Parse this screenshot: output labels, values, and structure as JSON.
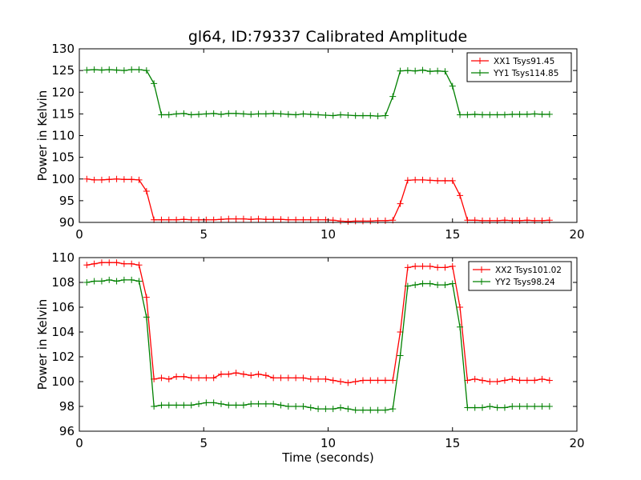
{
  "title": "gl64, ID:79337 Calibrated Amplitude",
  "chart_data": [
    {
      "type": "line",
      "ylabel": "Power in Kelvin",
      "xlabel": "",
      "xlim": [
        0,
        20
      ],
      "ylim": [
        90,
        130
      ],
      "xticks": [
        0,
        5,
        10,
        15,
        20
      ],
      "yticks": [
        90,
        95,
        100,
        105,
        110,
        115,
        120,
        125,
        130
      ],
      "legend_position": "top-right",
      "grid": false,
      "x": [
        0.3,
        0.6,
        0.9,
        1.2,
        1.5,
        1.8,
        2.1,
        2.4,
        2.7,
        3.0,
        3.3,
        3.6,
        3.9,
        4.2,
        4.5,
        4.8,
        5.1,
        5.4,
        5.7,
        6.0,
        6.3,
        6.6,
        6.9,
        7.2,
        7.5,
        7.8,
        8.1,
        8.4,
        8.7,
        9.0,
        9.3,
        9.6,
        9.9,
        10.2,
        10.5,
        10.8,
        11.1,
        11.4,
        11.7,
        12.0,
        12.3,
        12.6,
        12.9,
        13.2,
        13.5,
        13.8,
        14.1,
        14.4,
        14.7,
        15.0,
        15.3,
        15.6,
        15.9,
        16.2,
        16.5,
        16.8,
        17.1,
        17.4,
        17.7,
        18.0,
        18.3,
        18.6,
        18.9
      ],
      "series": [
        {
          "name": "XX1 Tsys91.45",
          "color": "#ff0000",
          "values": [
            100.0,
            99.8,
            99.8,
            99.9,
            100.0,
            99.9,
            99.9,
            99.8,
            97.2,
            90.6,
            90.6,
            90.6,
            90.6,
            90.7,
            90.6,
            90.6,
            90.6,
            90.6,
            90.7,
            90.8,
            90.8,
            90.8,
            90.7,
            90.8,
            90.7,
            90.7,
            90.7,
            90.6,
            90.6,
            90.6,
            90.6,
            90.6,
            90.6,
            90.5,
            90.3,
            90.2,
            90.3,
            90.3,
            90.3,
            90.4,
            90.4,
            90.5,
            94.3,
            99.7,
            99.8,
            99.8,
            99.7,
            99.6,
            99.6,
            99.6,
            96.2,
            90.5,
            90.5,
            90.4,
            90.4,
            90.4,
            90.5,
            90.4,
            90.4,
            90.5,
            90.4,
            90.4,
            90.5
          ]
        },
        {
          "name": "YY1 Tsys114.85",
          "color": "#008000",
          "values": [
            125.1,
            125.2,
            125.1,
            125.2,
            125.1,
            125.0,
            125.2,
            125.2,
            125.0,
            122.0,
            114.8,
            114.8,
            115.0,
            115.1,
            114.8,
            114.9,
            115.0,
            115.1,
            114.9,
            115.1,
            115.1,
            115.0,
            114.9,
            115.0,
            115.0,
            115.1,
            115.0,
            114.9,
            114.8,
            115.0,
            114.9,
            114.8,
            114.7,
            114.6,
            114.8,
            114.7,
            114.6,
            114.6,
            114.6,
            114.5,
            114.6,
            119.0,
            124.9,
            125.0,
            124.9,
            125.1,
            124.8,
            124.9,
            124.8,
            121.4,
            114.8,
            114.8,
            114.9,
            114.8,
            114.8,
            114.8,
            114.8,
            114.9,
            114.9,
            114.9,
            115.0,
            114.9,
            114.9
          ]
        }
      ]
    },
    {
      "type": "line",
      "ylabel": "Power in Kelvin",
      "xlabel": "Time (seconds)",
      "xlim": [
        0,
        20
      ],
      "ylim": [
        96,
        110
      ],
      "xticks": [
        0,
        5,
        10,
        15,
        20
      ],
      "yticks": [
        96,
        98,
        100,
        102,
        104,
        106,
        108,
        110
      ],
      "legend_position": "top-right",
      "grid": false,
      "x": [
        0.3,
        0.6,
        0.9,
        1.2,
        1.5,
        1.8,
        2.1,
        2.4,
        2.7,
        3.0,
        3.3,
        3.6,
        3.9,
        4.2,
        4.5,
        4.8,
        5.1,
        5.4,
        5.7,
        6.0,
        6.3,
        6.6,
        6.9,
        7.2,
        7.5,
        7.8,
        8.1,
        8.4,
        8.7,
        9.0,
        9.3,
        9.6,
        9.9,
        10.2,
        10.5,
        10.8,
        11.1,
        11.4,
        11.7,
        12.0,
        12.3,
        12.6,
        12.9,
        13.2,
        13.5,
        13.8,
        14.1,
        14.4,
        14.7,
        15.0,
        15.3,
        15.6,
        15.9,
        16.2,
        16.5,
        16.8,
        17.1,
        17.4,
        17.7,
        18.0,
        18.3,
        18.6,
        18.9
      ],
      "series": [
        {
          "name": "XX2 Tsys101.02",
          "color": "#ff0000",
          "values": [
            109.4,
            109.5,
            109.6,
            109.6,
            109.6,
            109.5,
            109.5,
            109.4,
            106.8,
            100.2,
            100.3,
            100.2,
            100.4,
            100.4,
            100.3,
            100.3,
            100.3,
            100.3,
            100.6,
            100.6,
            100.7,
            100.6,
            100.5,
            100.6,
            100.5,
            100.3,
            100.3,
            100.3,
            100.3,
            100.3,
            100.2,
            100.2,
            100.2,
            100.1,
            100.0,
            99.9,
            100.0,
            100.1,
            100.1,
            100.1,
            100.1,
            100.1,
            104.0,
            109.2,
            109.3,
            109.3,
            109.3,
            109.2,
            109.2,
            109.3,
            106.0,
            100.1,
            100.2,
            100.1,
            100.0,
            100.0,
            100.1,
            100.2,
            100.1,
            100.1,
            100.1,
            100.2,
            100.1
          ]
        },
        {
          "name": "YY2 Tsys98.24",
          "color": "#008000",
          "values": [
            108.0,
            108.1,
            108.1,
            108.2,
            108.1,
            108.2,
            108.2,
            108.1,
            105.2,
            98.0,
            98.1,
            98.1,
            98.1,
            98.1,
            98.1,
            98.2,
            98.3,
            98.3,
            98.2,
            98.1,
            98.1,
            98.1,
            98.2,
            98.2,
            98.2,
            98.2,
            98.1,
            98.0,
            98.0,
            98.0,
            97.9,
            97.8,
            97.8,
            97.8,
            97.9,
            97.8,
            97.7,
            97.7,
            97.7,
            97.7,
            97.7,
            97.8,
            102.1,
            107.7,
            107.8,
            107.9,
            107.9,
            107.8,
            107.8,
            107.9,
            104.4,
            97.9,
            97.9,
            97.9,
            98.0,
            97.9,
            97.9,
            98.0,
            98.0,
            98.0,
            98.0,
            98.0,
            98.0
          ]
        }
      ]
    }
  ]
}
